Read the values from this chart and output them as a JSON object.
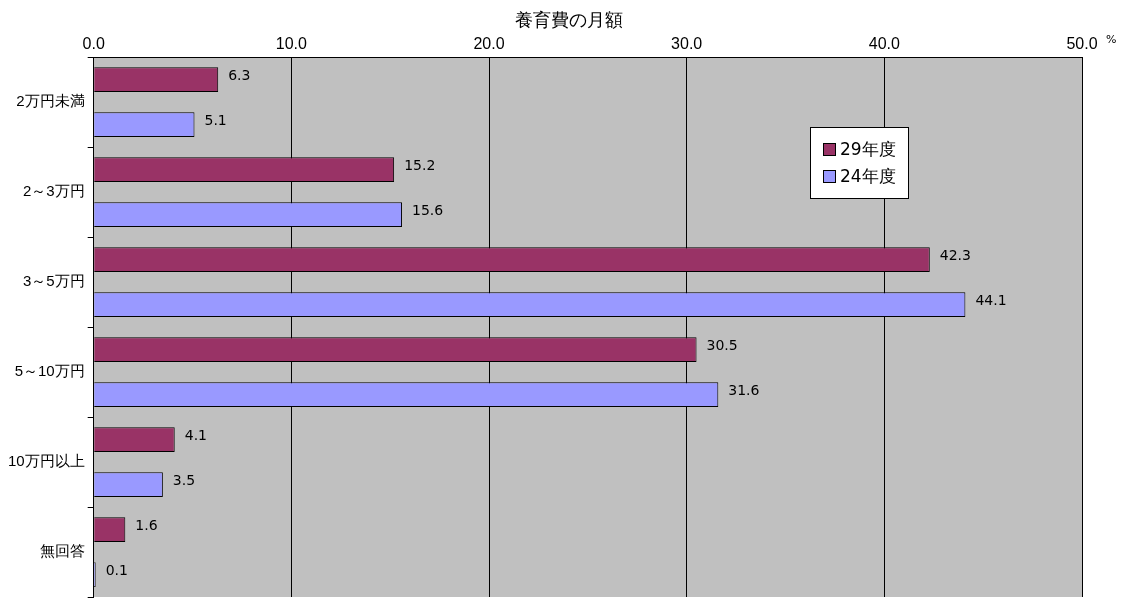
{
  "chart_data": {
    "type": "bar",
    "orientation": "horizontal",
    "title": "養育費の月額",
    "xlabel": "%",
    "categories": [
      "2万円未満",
      "2～3万円",
      "3～5万円",
      "5～10万円",
      "10万円以上",
      "無回答"
    ],
    "series": [
      {
        "name": "29年度",
        "color": "#993366",
        "values": [
          6.3,
          15.2,
          42.3,
          30.5,
          4.1,
          1.6
        ]
      },
      {
        "name": "24年度",
        "color": "#9999ff",
        "values": [
          5.1,
          15.6,
          44.1,
          31.6,
          3.5,
          0.1
        ]
      }
    ],
    "xlim": [
      0,
      50
    ],
    "xticks": [
      {
        "value": 0,
        "label": "0.0"
      },
      {
        "value": 10,
        "label": "10.0"
      },
      {
        "value": 20,
        "label": "20.0"
      },
      {
        "value": 30,
        "label": "30.0"
      },
      {
        "value": 40,
        "label": "40.0"
      },
      {
        "value": 50,
        "label": "50.0"
      }
    ],
    "grid": "x",
    "legend": "top right",
    "data_labels": true
  }
}
